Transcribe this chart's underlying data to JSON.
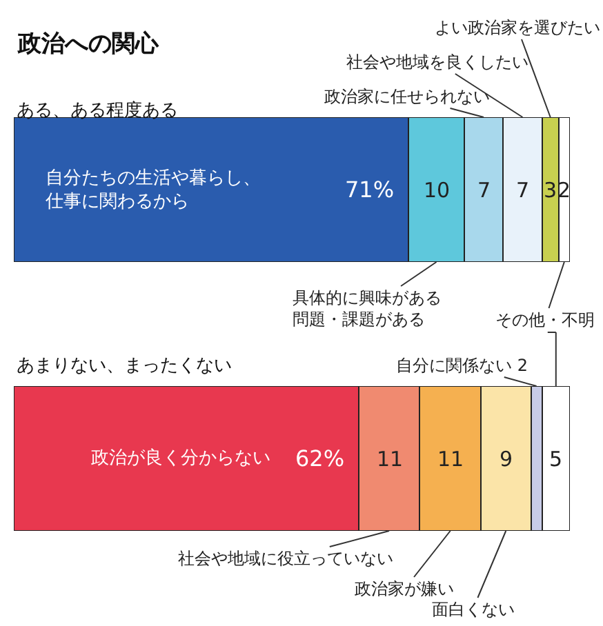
{
  "chart_data": [
    {
      "type": "bar",
      "orientation": "horizontal",
      "stacked": true,
      "title": "政治への関心",
      "subtitle": "ある、ある程度ある",
      "categories": [
        null
      ],
      "xlim": [
        0,
        100
      ],
      "tick_labels": false,
      "series": [
        {
          "name": "自分たちの生活や暮らし、仕事に関わるから",
          "color": "#2a5cae",
          "values": [
            71
          ],
          "value_labels": [
            "71%"
          ]
        },
        {
          "name": "具体的に興味がある問題・課題がある",
          "color": "#5ec8dc",
          "values": [
            10
          ],
          "value_labels": [
            "10"
          ]
        },
        {
          "name": "政治家に任せられない",
          "color": "#a8d8ec",
          "values": [
            7
          ],
          "value_labels": [
            "7"
          ]
        },
        {
          "name": "社会や地域を良くしたい",
          "color": "#e8f2fa",
          "values": [
            7
          ],
          "value_labels": [
            "7"
          ]
        },
        {
          "name": "よい政治家を選びたい",
          "color": "#c8d050",
          "values": [
            3
          ],
          "value_labels": [
            "3"
          ]
        },
        {
          "name": "その他・不明",
          "color": "#ffffff",
          "values": [
            2
          ],
          "value_labels": [
            "2"
          ]
        }
      ]
    },
    {
      "type": "bar",
      "orientation": "horizontal",
      "stacked": true,
      "title": "あまりない、まったくない",
      "categories": [
        null
      ],
      "xlim": [
        0,
        100
      ],
      "tick_labels": false,
      "series": [
        {
          "name": "政治が良く分からない",
          "color": "#e8384f",
          "values": [
            62
          ],
          "value_labels": [
            "62%"
          ]
        },
        {
          "name": "社会や地域に役立っていない",
          "color": "#f08a70",
          "values": [
            11
          ],
          "value_labels": [
            "11"
          ]
        },
        {
          "name": "政治家が嫌い",
          "color": "#f5b050",
          "values": [
            11
          ],
          "value_labels": [
            "11"
          ]
        },
        {
          "name": "面白くない",
          "color": "#fbe4a8",
          "values": [
            9
          ],
          "value_labels": [
            "9"
          ]
        },
        {
          "name": "自分に関係ない",
          "color": "#c8cce8",
          "values": [
            2
          ],
          "value_labels": [
            "2"
          ]
        },
        {
          "color": "#ffffff",
          "values": [
            5
          ],
          "value_labels": [
            "5"
          ]
        }
      ]
    }
  ]
}
